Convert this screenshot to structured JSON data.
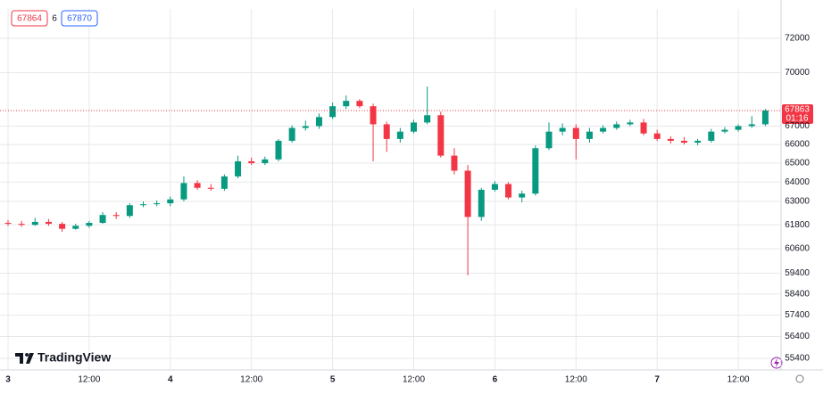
{
  "chart_data": {
    "type": "candlestick",
    "bid": 67864,
    "spread": 6,
    "ask": 67870,
    "logo": "TradingView",
    "categories": [
      "3",
      null,
      null,
      null,
      null,
      null,
      "12:00",
      null,
      null,
      null,
      null,
      null,
      "4",
      null,
      null,
      null,
      null,
      null,
      "12:00",
      null,
      null,
      null,
      null,
      null,
      "5",
      null,
      null,
      null,
      null,
      null,
      "12:00",
      null,
      null,
      null,
      null,
      null,
      "6",
      null,
      null,
      null,
      null,
      null,
      "12:00",
      null,
      null,
      null,
      null,
      null,
      "7",
      null,
      null,
      null,
      null,
      null,
      "12:00",
      null,
      null
    ],
    "open": [
      61900,
      61850,
      61800,
      61950,
      61850,
      61600,
      61750,
      61900,
      62300,
      62250,
      62800,
      62850,
      62900,
      63100,
      63950,
      63700,
      63650,
      64300,
      65100,
      65000,
      65200,
      66200,
      66900,
      67000,
      67500,
      68100,
      68400,
      68100,
      67100,
      66300,
      66700,
      67200,
      67600,
      65400,
      64600,
      62200,
      63600,
      63900,
      63200,
      63400,
      65800,
      66700,
      66900,
      66300,
      66700,
      66900,
      67100,
      67200,
      66600,
      66300,
      66200,
      66100,
      66200,
      66700,
      66800,
      67000,
      67100
    ],
    "high": [
      62050,
      62000,
      62150,
      62100,
      61950,
      61850,
      62000,
      62450,
      62450,
      62900,
      63000,
      63050,
      63250,
      64300,
      64100,
      63900,
      64400,
      65400,
      65300,
      65350,
      66300,
      67050,
      67300,
      67700,
      68300,
      68700,
      68500,
      68250,
      67250,
      66900,
      67350,
      69200,
      67800,
      65800,
      64900,
      63700,
      64050,
      64000,
      63550,
      65950,
      67200,
      67150,
      67100,
      66900,
      67050,
      67250,
      67350,
      67400,
      66800,
      66450,
      66400,
      66300,
      66850,
      66950,
      67100,
      67550,
      67950
    ],
    "low": [
      61750,
      61700,
      61750,
      61750,
      61450,
      61550,
      61650,
      61850,
      62100,
      62150,
      62700,
      62750,
      62750,
      63000,
      63600,
      63550,
      63550,
      64200,
      64900,
      64900,
      65100,
      66100,
      66750,
      66850,
      67400,
      67950,
      68000,
      65100,
      65600,
      66100,
      66600,
      67100,
      65300,
      64400,
      59300,
      62000,
      63500,
      63100,
      62950,
      63300,
      65700,
      66500,
      65200,
      66100,
      66600,
      66800,
      67000,
      66500,
      66200,
      66050,
      66000,
      65950,
      66100,
      66600,
      66700,
      66900,
      67000
    ],
    "close": [
      61850,
      61800,
      61950,
      61850,
      61600,
      61750,
      61900,
      62300,
      62250,
      62800,
      62850,
      62900,
      63100,
      63950,
      63700,
      63650,
      64300,
      65100,
      65000,
      65200,
      66200,
      66900,
      67000,
      67500,
      68100,
      68400,
      68100,
      67100,
      66300,
      66700,
      67200,
      67600,
      65400,
      64600,
      62200,
      63600,
      63900,
      63200,
      63400,
      65800,
      66700,
      66900,
      66300,
      66700,
      66900,
      67100,
      67200,
      66600,
      66300,
      66200,
      66100,
      66200,
      66700,
      66800,
      67000,
      67100,
      67863
    ],
    "up_color": "#089981",
    "down_color": "#f23645",
    "ylim": [
      55000,
      73800
    ],
    "log_scale": true,
    "grid": true,
    "yticks": [
      72000,
      70000,
      67000,
      66000,
      65000,
      64000,
      63000,
      61800,
      60600,
      59400,
      58400,
      57400,
      56400,
      55400
    ],
    "last_price": 67863,
    "countdown": "01:16"
  }
}
